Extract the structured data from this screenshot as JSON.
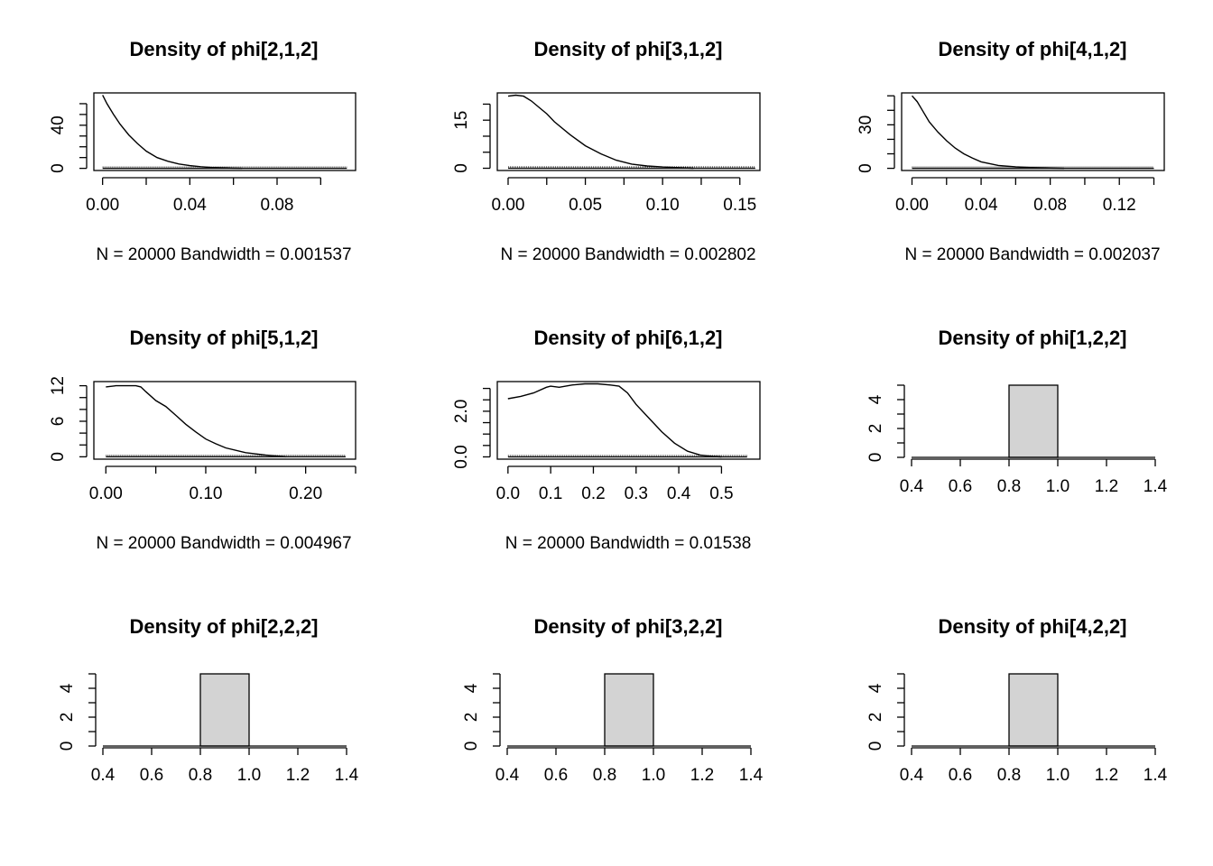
{
  "chart_data": [
    {
      "type": "line",
      "title": "Density of phi[2,1,2]",
      "note": "N = 20000   Bandwidth = 0.001537",
      "xlim": [
        -0.004,
        0.116
      ],
      "ylim": [
        -2,
        70
      ],
      "xticks": [
        0,
        0.02,
        0.04,
        0.06,
        0.08,
        0.1
      ],
      "xtick_labels": [
        "0.00",
        "",
        "0.04",
        "",
        "0.08",
        ""
      ],
      "yticks": [
        0,
        10,
        20,
        30,
        40,
        50,
        60
      ],
      "ytick_labels": [
        "0",
        "",
        "",
        "",
        "40",
        "",
        ""
      ],
      "x": [
        0,
        0.002,
        0.005,
        0.008,
        0.012,
        0.016,
        0.02,
        0.025,
        0.03,
        0.035,
        0.04,
        0.045,
        0.05,
        0.055,
        0.06,
        0.064
      ],
      "y": [
        68,
        60,
        50,
        41,
        31,
        23,
        16,
        10,
        6.5,
        4,
        2.5,
        1.5,
        0.8,
        0.4,
        0.2,
        0
      ],
      "rug_range": [
        0,
        0.112
      ]
    },
    {
      "type": "line",
      "title": "Density of phi[3,1,2]",
      "note": "N = 20000   Bandwidth = 0.002802",
      "xlim": [
        -0.007,
        0.163
      ],
      "ylim": [
        -0.7,
        23.5
      ],
      "xticks": [
        0,
        0.025,
        0.05,
        0.075,
        0.1,
        0.125,
        0.15
      ],
      "xtick_labels": [
        "0.00",
        "",
        "0.05",
        "",
        "0.10",
        "",
        "0.15"
      ],
      "yticks": [
        0,
        5,
        10,
        15,
        20
      ],
      "ytick_labels": [
        "0",
        "",
        "",
        "15",
        ""
      ],
      "x": [
        0,
        0.005,
        0.01,
        0.015,
        0.02,
        0.025,
        0.03,
        0.04,
        0.05,
        0.06,
        0.07,
        0.08,
        0.09,
        0.1,
        0.11,
        0.12
      ],
      "y": [
        22.5,
        22.8,
        22.5,
        21,
        19,
        17,
        14.5,
        10.5,
        7,
        4.5,
        2.5,
        1.3,
        0.7,
        0.4,
        0.2,
        0
      ],
      "rug_range": [
        0,
        0.16
      ]
    },
    {
      "type": "line",
      "title": "Density of phi[4,1,2]",
      "note": "N = 20000   Bandwidth = 0.002037",
      "xlim": [
        -0.006,
        0.146
      ],
      "ylim": [
        -1.5,
        52
      ],
      "xticks": [
        0,
        0.02,
        0.04,
        0.06,
        0.08,
        0.1,
        0.12,
        0.14
      ],
      "xtick_labels": [
        "0.00",
        "",
        "0.04",
        "",
        "0.08",
        "",
        "0.12",
        ""
      ],
      "yticks": [
        0,
        10,
        20,
        30,
        40,
        50
      ],
      "ytick_labels": [
        "0",
        "",
        "",
        "30",
        "",
        ""
      ],
      "x": [
        0,
        0.003,
        0.006,
        0.01,
        0.015,
        0.02,
        0.025,
        0.03,
        0.035,
        0.04,
        0.05,
        0.06,
        0.07,
        0.08,
        0.088
      ],
      "y": [
        50,
        46,
        40,
        32,
        25,
        19,
        14,
        10,
        7,
        4.5,
        2,
        1,
        0.5,
        0.2,
        0
      ],
      "rug_range": [
        0,
        0.14
      ]
    },
    {
      "type": "line",
      "title": "Density of phi[5,1,2]",
      "note": "N = 20000   Bandwidth = 0.004967",
      "xlim": [
        -0.012,
        0.25
      ],
      "ylim": [
        -0.4,
        12.7
      ],
      "xticks": [
        0,
        0.05,
        0.1,
        0.15,
        0.2,
        0.25
      ],
      "xtick_labels": [
        "0.00",
        "",
        "0.10",
        "",
        "0.20",
        ""
      ],
      "yticks": [
        0,
        2,
        4,
        6,
        8,
        10,
        12
      ],
      "ytick_labels": [
        "0",
        "",
        "",
        "6",
        "",
        "",
        "12"
      ],
      "x": [
        0,
        0.01,
        0.02,
        0.03,
        0.035,
        0.04,
        0.05,
        0.06,
        0.07,
        0.08,
        0.09,
        0.1,
        0.11,
        0.12,
        0.14,
        0.16,
        0.18
      ],
      "y": [
        11.8,
        12,
        12,
        12,
        11.8,
        11,
        9.5,
        8.5,
        7,
        5.5,
        4.2,
        3,
        2.2,
        1.5,
        0.7,
        0.3,
        0
      ],
      "rug_range": [
        0,
        0.24
      ]
    },
    {
      "type": "line",
      "title": "Density of phi[6,1,2]",
      "note": "N = 20000   Bandwidth = 0.01538",
      "xlim": [
        -0.025,
        0.59
      ],
      "ylim": [
        -0.1,
        3.3
      ],
      "xticks": [
        0,
        0.1,
        0.2,
        0.3,
        0.4,
        0.5
      ],
      "xtick_labels": [
        "0.0",
        "0.1",
        "0.2",
        "0.3",
        "0.4",
        "0.5"
      ],
      "yticks": [
        0,
        0.5,
        1,
        1.5,
        2,
        2.5,
        3
      ],
      "ytick_labels": [
        "0.0",
        "",
        "",
        "",
        "2.0",
        "",
        ""
      ],
      "x": [
        0,
        0.03,
        0.06,
        0.09,
        0.1,
        0.12,
        0.15,
        0.18,
        0.21,
        0.24,
        0.26,
        0.28,
        0.3,
        0.33,
        0.36,
        0.39,
        0.42,
        0.45,
        0.48,
        0.5
      ],
      "y": [
        2.55,
        2.65,
        2.8,
        3.05,
        3.1,
        3.05,
        3.15,
        3.2,
        3.2,
        3.15,
        3.1,
        2.8,
        2.3,
        1.7,
        1.1,
        0.6,
        0.25,
        0.08,
        0.02,
        0
      ],
      "rug_range": [
        0,
        0.56
      ]
    },
    {
      "type": "bar",
      "title": "Density of phi[1,2,2]",
      "xlim": [
        0.4,
        1.4
      ],
      "ylim": [
        0,
        5
      ],
      "xticks": [
        0.4,
        0.6,
        0.8,
        1.0,
        1.2,
        1.4
      ],
      "xtick_labels": [
        "0.4",
        "0.6",
        "0.8",
        "1.0",
        "1.2",
        "1.4"
      ],
      "yticks": [
        0,
        1,
        2,
        3,
        4,
        5
      ],
      "ytick_labels": [
        "0",
        "",
        "2",
        "",
        "4",
        ""
      ],
      "bins": [
        [
          0.8,
          1.0
        ]
      ],
      "values": [
        5
      ],
      "bar_color": "#d3d3d3"
    },
    {
      "type": "bar",
      "title": "Density of phi[2,2,2]",
      "xlim": [
        0.4,
        1.4
      ],
      "ylim": [
        0,
        5
      ],
      "xticks": [
        0.4,
        0.6,
        0.8,
        1.0,
        1.2,
        1.4
      ],
      "xtick_labels": [
        "0.4",
        "0.6",
        "0.8",
        "1.0",
        "1.2",
        "1.4"
      ],
      "yticks": [
        0,
        1,
        2,
        3,
        4,
        5
      ],
      "ytick_labels": [
        "0",
        "",
        "2",
        "",
        "4",
        ""
      ],
      "bins": [
        [
          0.8,
          1.0
        ]
      ],
      "values": [
        5
      ],
      "bar_color": "#d3d3d3"
    },
    {
      "type": "bar",
      "title": "Density of phi[3,2,2]",
      "xlim": [
        0.4,
        1.4
      ],
      "ylim": [
        0,
        5
      ],
      "xticks": [
        0.4,
        0.6,
        0.8,
        1.0,
        1.2,
        1.4
      ],
      "xtick_labels": [
        "0.4",
        "0.6",
        "0.8",
        "1.0",
        "1.2",
        "1.4"
      ],
      "yticks": [
        0,
        1,
        2,
        3,
        4,
        5
      ],
      "ytick_labels": [
        "0",
        "",
        "2",
        "",
        "4",
        ""
      ],
      "bins": [
        [
          0.8,
          1.0
        ]
      ],
      "values": [
        5
      ],
      "bar_color": "#d3d3d3"
    },
    {
      "type": "bar",
      "title": "Density of phi[4,2,2]",
      "xlim": [
        0.4,
        1.4
      ],
      "ylim": [
        0,
        5
      ],
      "xticks": [
        0.4,
        0.6,
        0.8,
        1.0,
        1.2,
        1.4
      ],
      "xtick_labels": [
        "0.4",
        "0.6",
        "0.8",
        "1.0",
        "1.2",
        "1.4"
      ],
      "yticks": [
        0,
        1,
        2,
        3,
        4,
        5
      ],
      "ytick_labels": [
        "0",
        "",
        "2",
        "",
        "4",
        ""
      ],
      "bins": [
        [
          0.8,
          1.0
        ]
      ],
      "values": [
        5
      ],
      "bar_color": "#d3d3d3"
    }
  ]
}
